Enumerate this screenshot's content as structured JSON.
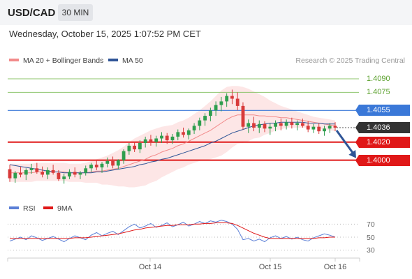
{
  "header": {
    "pair": "USD/CAD",
    "timeframe": "30 MIN"
  },
  "datetime": "Wednesday, October 15, 2025 1:07:52 PM CET",
  "legend": {
    "ma20": {
      "label": "MA 20 + Bollinger Bands",
      "color": "#f28b8b"
    },
    "ma50": {
      "label": "MA 50",
      "color": "#2f5597"
    },
    "copyright": "Research © 2025 Trading Central"
  },
  "colors": {
    "up": "#2e9e4e",
    "down": "#d83a3a",
    "band_fill": "#fde2e2",
    "resistance_green": "#8cc46b",
    "pivot_blue": "#3a78d8",
    "support_red": "#e01818",
    "current_dark": "#333333",
    "arrow": "#2f5597",
    "rsi": "#5b7fd6",
    "rsi_ma": "#e01818"
  },
  "price_levels": [
    {
      "value": "1.4090",
      "kind": "resistance",
      "label_color": "#5aa02c",
      "bg": "transparent"
    },
    {
      "value": "1.4075",
      "kind": "resistance",
      "label_color": "#5aa02c",
      "bg": "transparent"
    },
    {
      "value": "1.4055",
      "kind": "pivot",
      "label_color": "#ffffff",
      "bg": "#3a78d8"
    },
    {
      "value": "1.4036",
      "kind": "current",
      "label_color": "#ffffff",
      "bg": "#333333"
    },
    {
      "value": "1.4020",
      "kind": "support",
      "label_color": "#ffffff",
      "bg": "#e01818"
    },
    {
      "value": "1.4000",
      "kind": "support",
      "label_color": "#ffffff",
      "bg": "#e01818"
    }
  ],
  "rsi_panel": {
    "legend": {
      "rsi": "RSI",
      "ma": "9MA"
    },
    "levels": [
      "70",
      "50",
      "30"
    ]
  },
  "x_axis": {
    "labels": [
      "Oct 14",
      "Oct 15",
      "Oct 16"
    ]
  },
  "chart_data": {
    "type": "candlestick",
    "title": "USD/CAD",
    "timeframe": "30 MIN",
    "ylim": [
      1.3965,
      1.41
    ],
    "candles_ohlc": [
      [
        1.399,
        1.3995,
        1.3976,
        1.398
      ],
      [
        1.398,
        1.3988,
        1.3975,
        1.3986
      ],
      [
        1.3986,
        1.3993,
        1.3981,
        1.3984
      ],
      [
        1.3984,
        1.3991,
        1.3978,
        1.3989
      ],
      [
        1.3989,
        1.3996,
        1.3985,
        1.3991
      ],
      [
        1.3991,
        1.3997,
        1.3985,
        1.3987
      ],
      [
        1.3987,
        1.3993,
        1.3981,
        1.3984
      ],
      [
        1.3984,
        1.3992,
        1.3979,
        1.3989
      ],
      [
        1.3989,
        1.3995,
        1.3984,
        1.3986
      ],
      [
        1.3986,
        1.3989,
        1.3977,
        1.3979
      ],
      [
        1.3979,
        1.3985,
        1.3974,
        1.3982
      ],
      [
        1.3982,
        1.399,
        1.3979,
        1.3987
      ],
      [
        1.3987,
        1.3992,
        1.3981,
        1.3984
      ],
      [
        1.3984,
        1.3988,
        1.3979,
        1.3986
      ],
      [
        1.3986,
        1.3994,
        1.3983,
        1.3991
      ],
      [
        1.3991,
        1.3997,
        1.3987,
        1.3995
      ],
      [
        1.3995,
        1.4,
        1.3989,
        1.3992
      ],
      [
        1.3992,
        1.3998,
        1.3986,
        1.3996
      ],
      [
        1.3996,
        1.4003,
        1.3992,
        1.3999
      ],
      [
        1.3999,
        1.4004,
        1.3991,
        1.3994
      ],
      [
        1.3994,
        1.4001,
        1.399,
        1.4
      ],
      [
        1.4,
        1.4012,
        1.3996,
        1.401
      ],
      [
        1.401,
        1.4019,
        1.4006,
        1.4016
      ],
      [
        1.4016,
        1.402,
        1.4009,
        1.4012
      ],
      [
        1.4012,
        1.4022,
        1.4008,
        1.4019
      ],
      [
        1.4019,
        1.4026,
        1.4014,
        1.4023
      ],
      [
        1.4023,
        1.4028,
        1.4016,
        1.402
      ],
      [
        1.402,
        1.4027,
        1.4015,
        1.4024
      ],
      [
        1.4024,
        1.4031,
        1.4019,
        1.4027
      ],
      [
        1.4027,
        1.403,
        1.4018,
        1.4022
      ],
      [
        1.4022,
        1.4029,
        1.4018,
        1.4026
      ],
      [
        1.4026,
        1.4034,
        1.4022,
        1.4031
      ],
      [
        1.4031,
        1.4036,
        1.4025,
        1.4028
      ],
      [
        1.4028,
        1.4035,
        1.4023,
        1.4033
      ],
      [
        1.4033,
        1.4041,
        1.4029,
        1.4038
      ],
      [
        1.4038,
        1.4047,
        1.4033,
        1.4044
      ],
      [
        1.4044,
        1.4052,
        1.4038,
        1.4049
      ],
      [
        1.4049,
        1.4058,
        1.4043,
        1.4055
      ],
      [
        1.4055,
        1.4065,
        1.4049,
        1.4061
      ],
      [
        1.4061,
        1.407,
        1.4054,
        1.4065
      ],
      [
        1.4065,
        1.4074,
        1.4059,
        1.4071
      ],
      [
        1.4071,
        1.4078,
        1.4062,
        1.4068
      ],
      [
        1.4068,
        1.4075,
        1.4055,
        1.406
      ],
      [
        1.406,
        1.4064,
        1.4034,
        1.4037
      ],
      [
        1.4037,
        1.4045,
        1.403,
        1.4041
      ],
      [
        1.4041,
        1.4048,
        1.4032,
        1.4036
      ],
      [
        1.4036,
        1.4044,
        1.403,
        1.404
      ],
      [
        1.404,
        1.4043,
        1.4031,
        1.4035
      ],
      [
        1.4035,
        1.4041,
        1.4028,
        1.4037
      ],
      [
        1.4037,
        1.4044,
        1.4032,
        1.4041
      ],
      [
        1.4041,
        1.4046,
        1.4033,
        1.4038
      ],
      [
        1.4038,
        1.4045,
        1.4034,
        1.4042
      ],
      [
        1.4042,
        1.4047,
        1.4035,
        1.4039
      ],
      [
        1.4039,
        1.4044,
        1.4033,
        1.4041
      ],
      [
        1.4041,
        1.4046,
        1.4036,
        1.4038
      ],
      [
        1.4038,
        1.4043,
        1.4031,
        1.4034
      ],
      [
        1.4034,
        1.404,
        1.403,
        1.4037
      ],
      [
        1.4037,
        1.4041,
        1.4029,
        1.4032
      ],
      [
        1.4032,
        1.4038,
        1.4027,
        1.4035
      ],
      [
        1.4035,
        1.4041,
        1.403,
        1.4038
      ],
      [
        1.4038,
        1.4042,
        1.4032,
        1.4036
      ]
    ],
    "ma20": [
      1.3986,
      1.3986,
      1.3986,
      1.3986,
      1.3986,
      1.3987,
      1.3987,
      1.3987,
      1.3987,
      1.3987,
      1.3987,
      1.3986,
      1.3986,
      1.3986,
      1.3986,
      1.3987,
      1.3988,
      1.3988,
      1.3989,
      1.399,
      1.3991,
      1.3993,
      1.3995,
      1.3997,
      1.3999,
      1.4001,
      1.4004,
      1.4006,
      1.4009,
      1.4011,
      1.4013,
      1.4016,
      1.4018,
      1.4021,
      1.4024,
      1.4027,
      1.403,
      1.4033,
      1.4037,
      1.4041,
      1.4045,
      1.4048,
      1.405,
      1.405,
      1.405,
      1.405,
      1.4049,
      1.4049,
      1.4048,
      1.4048,
      1.4047,
      1.4047,
      1.4046,
      1.4045,
      1.4044,
      1.4043,
      1.4042,
      1.4041,
      1.404,
      1.4039,
      1.4038
    ],
    "bb_upper": [
      1.3996,
      1.3996,
      1.3996,
      1.3996,
      1.3996,
      1.3997,
      1.3997,
      1.3997,
      1.3997,
      1.3997,
      1.3997,
      1.3996,
      1.3996,
      1.3996,
      1.3997,
      1.3999,
      1.4001,
      1.4003,
      1.4005,
      1.4008,
      1.4011,
      1.4015,
      1.402,
      1.4024,
      1.4027,
      1.403,
      1.4033,
      1.4035,
      1.4037,
      1.4038,
      1.4039,
      1.4042,
      1.4044,
      1.4047,
      1.4051,
      1.4055,
      1.406,
      1.4065,
      1.4071,
      1.4077,
      1.4081,
      1.4082,
      1.4082,
      1.4081,
      1.4079,
      1.4076,
      1.4073,
      1.407,
      1.4066,
      1.4063,
      1.406,
      1.4058,
      1.4056,
      1.4054,
      1.4052,
      1.405,
      1.4048,
      1.4047,
      1.4046,
      1.4045,
      1.4044
    ],
    "bb_lower": [
      1.3976,
      1.3976,
      1.3976,
      1.3976,
      1.3976,
      1.3977,
      1.3977,
      1.3977,
      1.3977,
      1.3977,
      1.3977,
      1.3976,
      1.3976,
      1.3976,
      1.3975,
      1.3975,
      1.3975,
      1.3973,
      1.3973,
      1.3972,
      1.3971,
      1.3971,
      1.397,
      1.397,
      1.3971,
      1.3972,
      1.3975,
      1.3977,
      1.3981,
      1.3984,
      1.3987,
      1.399,
      1.3992,
      1.3995,
      1.3997,
      1.3999,
      1.4,
      1.4001,
      1.4003,
      1.4005,
      1.4009,
      1.4014,
      1.4018,
      1.4019,
      1.4021,
      1.4024,
      1.4025,
      1.4028,
      1.403,
      1.4033,
      1.4034,
      1.4036,
      1.4036,
      1.4036,
      1.4036,
      1.4036,
      1.4036,
      1.4035,
      1.4034,
      1.4033,
      1.4032
    ],
    "ma50": [
      1.3995,
      1.3994,
      1.3993,
      1.3992,
      1.3991,
      1.399,
      1.3989,
      1.3988,
      1.3987,
      1.3987,
      1.3986,
      1.3986,
      1.3986,
      1.3986,
      1.3986,
      1.3986,
      1.3987,
      1.3987,
      1.3988,
      1.3989,
      1.399,
      1.3991,
      1.3992,
      1.3993,
      1.3995,
      1.3996,
      1.3998,
      1.3999,
      1.4001,
      1.4002,
      1.4004,
      1.4006,
      1.4008,
      1.401,
      1.4012,
      1.4014,
      1.4016,
      1.4019,
      1.4021,
      1.4024,
      1.4027,
      1.403,
      1.4032,
      1.4034,
      1.4036,
      1.4038,
      1.4039,
      1.404,
      1.4041,
      1.4041,
      1.4042,
      1.4042,
      1.4042,
      1.4042,
      1.4042,
      1.4041,
      1.4041,
      1.4041,
      1.404,
      1.404,
      1.404
    ],
    "projection": {
      "from": 1.4036,
      "to": 1.4
    },
    "rsi": [
      44,
      47,
      50,
      46,
      52,
      49,
      45,
      48,
      51,
      47,
      43,
      48,
      52,
      49,
      46,
      53,
      57,
      52,
      56,
      59,
      54,
      60,
      66,
      70,
      64,
      67,
      71,
      65,
      68,
      72,
      66,
      69,
      73,
      67,
      70,
      74,
      71,
      75,
      73,
      76,
      74,
      70,
      62,
      46,
      48,
      44,
      47,
      43,
      49,
      52,
      48,
      51,
      47,
      50,
      46,
      44,
      49,
      52,
      55,
      53,
      50
    ],
    "rsi_ma": [
      48,
      48,
      48,
      48,
      48,
      48,
      48,
      48,
      48,
      48,
      48,
      48,
      49,
      49,
      49,
      50,
      51,
      52,
      53,
      54,
      55,
      57,
      59,
      61,
      62,
      64,
      65,
      66,
      67,
      68,
      68,
      69,
      69,
      69,
      70,
      70,
      71,
      71,
      72,
      72,
      72,
      71,
      68,
      64,
      60,
      56,
      53,
      50,
      48,
      48,
      48,
      48,
      48,
      48,
      48,
      48,
      48,
      49,
      49,
      50,
      50
    ],
    "rsi_ylim": [
      20,
      80
    ]
  }
}
